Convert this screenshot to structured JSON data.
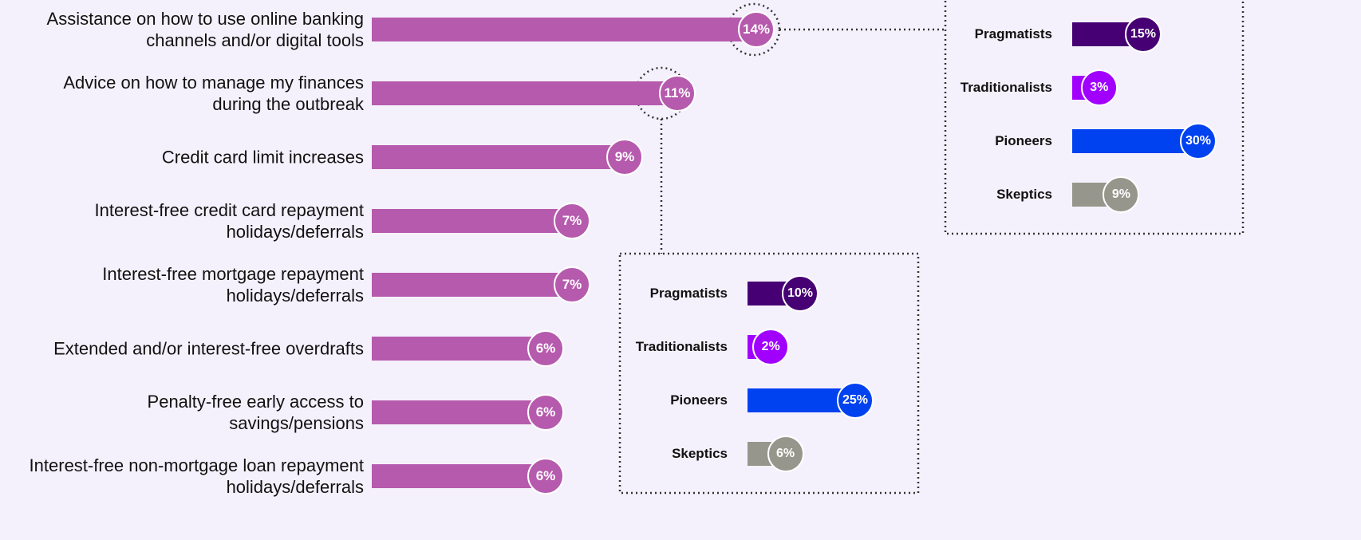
{
  "chart_data": {
    "type": "bar",
    "categories": [
      "Assistance on how to use online banking channels and/or digital tools",
      "Advice on how to manage my finances during the outbreak",
      "Credit card limit increases",
      "Interest-free credit card repayment holidays/deferrals",
      "Interest-free mortgage repayment holidays/deferrals",
      "Extended and/or interest-free overdrafts",
      "Penalty-free early access to savings/pensions",
      "Interest-free non-mortgage loan repayment holidays/deferrals"
    ],
    "values": [
      14,
      11,
      9,
      7,
      7,
      6,
      6,
      6
    ],
    "value_labels": [
      "14%",
      "11%",
      "9%",
      "7%",
      "7%",
      "6%",
      "6%",
      "6%"
    ],
    "color": "#b65aad",
    "breakdowns": [
      {
        "categories": [
          "Pragmatists",
          "Traditionalists",
          "Pioneers",
          "Skeptics"
        ],
        "values": [
          15,
          3,
          30,
          9
        ],
        "value_labels": [
          "15%",
          "3%",
          "30%",
          "9%"
        ],
        "colors": [
          "#460073",
          "#a100ff",
          "#0041f0",
          "#96968c"
        ]
      },
      {
        "categories": [
          "Pragmatists",
          "Traditionalists",
          "Pioneers",
          "Skeptics"
        ],
        "values": [
          10,
          2,
          25,
          6
        ],
        "value_labels": [
          "10%",
          "2%",
          "25%",
          "6%"
        ],
        "colors": [
          "#460073",
          "#a100ff",
          "#0041f0",
          "#96968c"
        ]
      }
    ]
  }
}
